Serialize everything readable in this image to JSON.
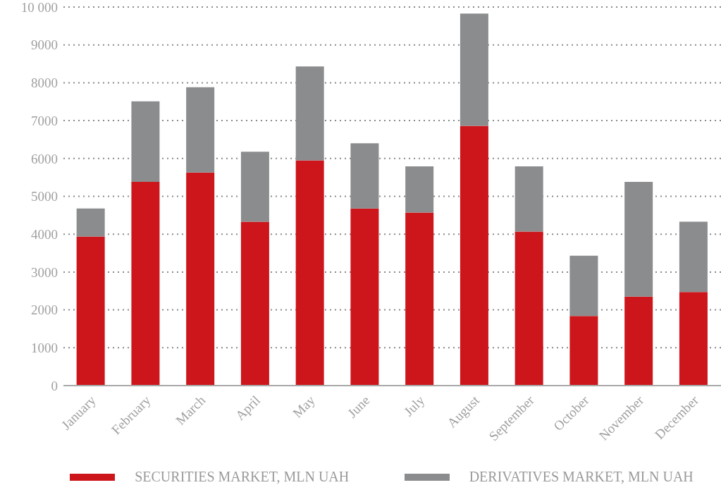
{
  "chart_data": {
    "type": "bar",
    "stacked": true,
    "categories": [
      "January",
      "February",
      "March",
      "April",
      "May",
      "June",
      "July",
      "August",
      "September",
      "October",
      "November",
      "December"
    ],
    "series": [
      {
        "name": "SECURITIES MARKET, MLN UAH",
        "color": "#cc161b",
        "values": [
          3940,
          5380,
          5630,
          4330,
          5950,
          4680,
          4570,
          6860,
          4070,
          1840,
          2350,
          2470
        ]
      },
      {
        "name": "DERIVATIVES MARKET, MLN UAH",
        "color": "#8b8c8e",
        "values": [
          740,
          2130,
          2250,
          1850,
          2480,
          1720,
          1220,
          2970,
          1720,
          1590,
          3030,
          1860
        ]
      }
    ],
    "ylim": [
      0,
      10000
    ],
    "yticks": [
      0,
      1000,
      2000,
      3000,
      4000,
      5000,
      6000,
      7000,
      8000,
      9000,
      {
        "value": 10000,
        "label": "10 000"
      }
    ],
    "grid": "y",
    "legend": "bottom"
  }
}
